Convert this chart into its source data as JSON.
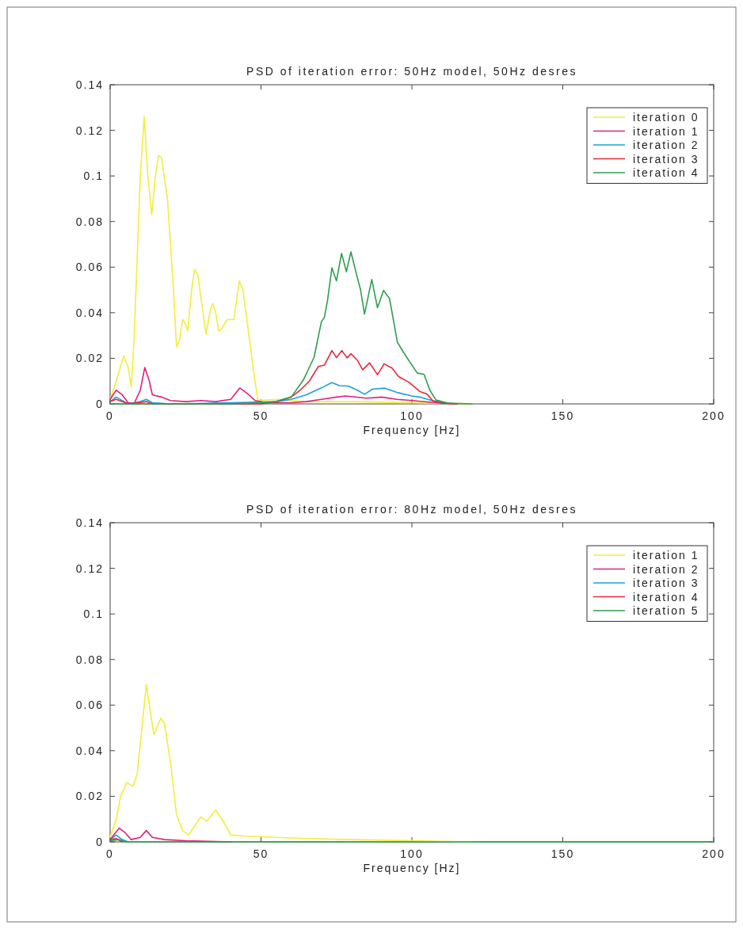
{
  "chart_data": [
    {
      "type": "line",
      "title": "PSD of iteration error: 50Hz model, 50Hz desres",
      "xlabel": "Frequency [Hz]",
      "xlim": [
        0,
        200
      ],
      "xticks": [
        0,
        50,
        100,
        150,
        200
      ],
      "ylim": [
        0,
        0.14
      ],
      "yticks": [
        0,
        0.02,
        0.04,
        0.06,
        0.08,
        0.1,
        0.12,
        0.14
      ],
      "legend": "top right",
      "grid": false,
      "series": [
        {
          "name": "iteration 0",
          "color": "#f2ee3a",
          "x": [
            0,
            2,
            4.5,
            6,
            7,
            8,
            10,
            11.3,
            12.5,
            13.8,
            15,
            16,
            17,
            19,
            21,
            22,
            23,
            24,
            25,
            25.7,
            27,
            28,
            29,
            31,
            31.8,
            33,
            34,
            35,
            36,
            37,
            38.8,
            41,
            42.8,
            44,
            46,
            48,
            49,
            55,
            65,
            80,
            100,
            110,
            120
          ],
          "values": [
            0.002,
            0.01,
            0.021,
            0.016,
            0.0075,
            0.03,
            0.1,
            0.126,
            0.1,
            0.083,
            0.1,
            0.109,
            0.108,
            0.09,
            0.05,
            0.025,
            0.028,
            0.037,
            0.035,
            0.032,
            0.05,
            0.059,
            0.057,
            0.038,
            0.0305,
            0.04,
            0.044,
            0.04,
            0.032,
            0.033,
            0.037,
            0.037,
            0.054,
            0.05,
            0.03,
            0.01,
            0.0015,
            0.002,
            0.001,
            0.001,
            0.0005,
            0.0003,
            0
          ]
        },
        {
          "name": "iteration 1",
          "color": "#e0207a",
          "x": [
            0,
            2,
            4,
            6,
            8,
            10,
            11.5,
            13,
            14,
            17,
            20,
            25,
            30,
            35,
            40,
            43,
            46,
            48,
            52,
            60,
            65,
            70,
            75,
            78,
            85,
            90,
            95,
            100,
            108,
            115
          ],
          "values": [
            0.002,
            0.006,
            0.004,
            0.0005,
            0.0003,
            0.006,
            0.016,
            0.01,
            0.004,
            0.003,
            0.0015,
            0.001,
            0.0015,
            0.001,
            0.002,
            0.007,
            0.004,
            0.0015,
            0.0005,
            0.0005,
            0.001,
            0.002,
            0.003,
            0.0035,
            0.0025,
            0.003,
            0.002,
            0.0015,
            0.0005,
            0
          ]
        },
        {
          "name": "iteration 2",
          "color": "#1a9fe0",
          "x": [
            0,
            2,
            4,
            6,
            10,
            12,
            14,
            20,
            40,
            55,
            60,
            65,
            70,
            73.5,
            76,
            79,
            82,
            84.3,
            87,
            91,
            95.5,
            100,
            103,
            106,
            110,
            115
          ],
          "values": [
            0.001,
            0.003,
            0.0015,
            0,
            0.001,
            0.002,
            0.0005,
            0,
            0.0005,
            0.001,
            0.002,
            0.004,
            0.007,
            0.0094,
            0.008,
            0.0078,
            0.006,
            0.0042,
            0.0065,
            0.0069,
            0.0049,
            0.0035,
            0.0029,
            0.0017,
            0.0005,
            0
          ]
        },
        {
          "name": "iteration 3",
          "color": "#e8283c",
          "x": [
            0,
            2,
            4,
            6,
            12,
            14,
            50,
            55,
            60,
            63,
            66,
            69,
            71,
            73.5,
            75,
            76.8,
            78.5,
            79.8,
            82,
            83.7,
            86,
            88.6,
            90.8,
            93.4,
            95.6,
            99,
            102.6,
            105,
            107,
            110,
            115
          ],
          "values": [
            0.001,
            0.002,
            0.001,
            0,
            0.001,
            0,
            0,
            0.001,
            0.003,
            0.006,
            0.01,
            0.0164,
            0.017,
            0.0234,
            0.0203,
            0.0234,
            0.0202,
            0.022,
            0.019,
            0.015,
            0.018,
            0.0128,
            0.0176,
            0.0157,
            0.012,
            0.0095,
            0.0055,
            0.0043,
            0.0013,
            0.0003,
            0
          ]
        },
        {
          "name": "iteration 4",
          "color": "#2e9e4e",
          "x": [
            0,
            10,
            40,
            50,
            55,
            60,
            64,
            67.6,
            70,
            71,
            72,
            73.5,
            75,
            76.7,
            78.3,
            79.8,
            81.6,
            83,
            84.3,
            86.7,
            88.6,
            90.6,
            92.6,
            95.2,
            98.3,
            101.8,
            104,
            106,
            108,
            112,
            120
          ],
          "values": [
            0,
            0,
            0,
            0.0005,
            0.001,
            0.003,
            0.0104,
            0.0205,
            0.036,
            0.038,
            0.045,
            0.0597,
            0.054,
            0.066,
            0.058,
            0.0667,
            0.057,
            0.05,
            0.0394,
            0.0546,
            0.0422,
            0.0498,
            0.0462,
            0.027,
            0.0204,
            0.0135,
            0.013,
            0.0059,
            0.0017,
            0.0003,
            0
          ]
        }
      ]
    },
    {
      "type": "line",
      "title": "PSD of iteration error: 80Hz model, 50Hz desres",
      "xlabel": "Frequency [Hz]",
      "xlim": [
        0,
        200
      ],
      "xticks": [
        0,
        50,
        100,
        150,
        200
      ],
      "ylim": [
        0,
        0.14
      ],
      "yticks": [
        0,
        0.02,
        0.04,
        0.06,
        0.08,
        0.1,
        0.12,
        0.14
      ],
      "legend": "top right",
      "grid": false,
      "series": [
        {
          "name": "iteration 1",
          "color": "#f2ee3a",
          "x": [
            0,
            2,
            3.5,
            5.5,
            7.6,
            9,
            12,
            13,
            14.5,
            16.8,
            18,
            20,
            22,
            24,
            26,
            28,
            30,
            32,
            35,
            37,
            40,
            45,
            55,
            65,
            80,
            100,
            120
          ],
          "values": [
            0.002,
            0.01,
            0.02,
            0.026,
            0.0245,
            0.03,
            0.069,
            0.06,
            0.047,
            0.0543,
            0.052,
            0.035,
            0.012,
            0.005,
            0.003,
            0.007,
            0.011,
            0.009,
            0.014,
            0.01,
            0.003,
            0.0025,
            0.002,
            0.0015,
            0.001,
            0.0005,
            0
          ]
        },
        {
          "name": "iteration 2",
          "color": "#e0207a",
          "x": [
            0,
            3,
            5,
            7,
            10,
            12,
            14,
            18,
            25,
            40
          ],
          "values": [
            0.001,
            0.006,
            0.004,
            0.001,
            0.002,
            0.005,
            0.002,
            0.001,
            0.0005,
            0
          ]
        },
        {
          "name": "iteration 3",
          "color": "#1a9fe0",
          "x": [
            0,
            2,
            4,
            6
          ],
          "values": [
            0.001,
            0.003,
            0.001,
            0
          ]
        },
        {
          "name": "iteration 4",
          "color": "#e8283c",
          "x": [
            0,
            2,
            4
          ],
          "values": [
            0.001,
            0.0015,
            0
          ]
        },
        {
          "name": "iteration 5",
          "color": "#2e9e4e",
          "x": [
            0,
            3,
            5,
            200
          ],
          "values": [
            0.0005,
            0.001,
            0,
            0
          ]
        }
      ]
    }
  ]
}
